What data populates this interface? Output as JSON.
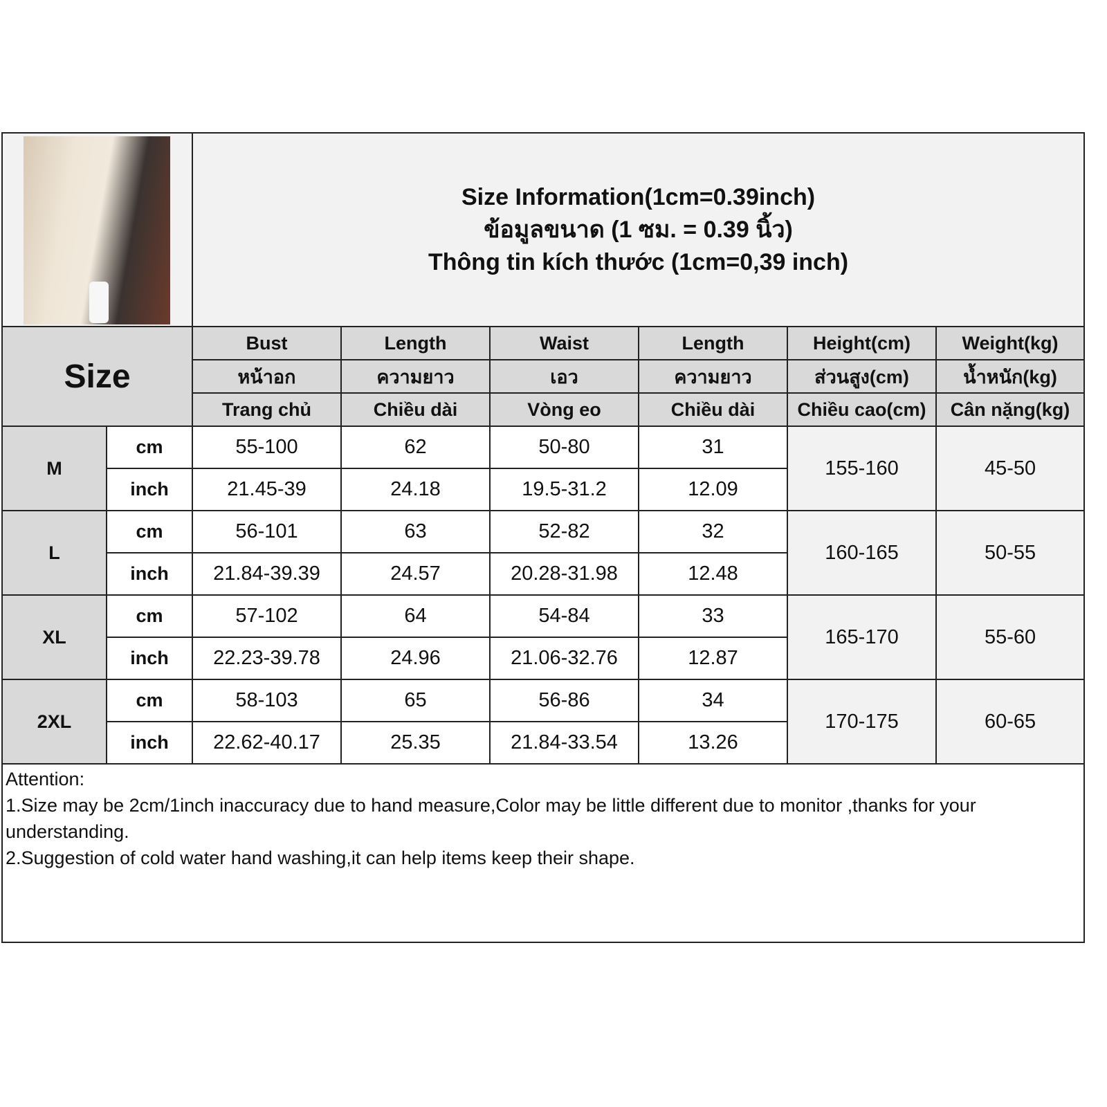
{
  "title": {
    "en": "Size Information(1cm=0.39inch)",
    "th": "ข้อมูลขนาด (1 ซม. = 0.39 นิ้ว)",
    "vi": "Thông tin kích thước (1cm=0,39 inch)"
  },
  "size_label": "Size",
  "columns": [
    {
      "en": "Bust",
      "th": "หน้าอก",
      "vi": "Trang chủ"
    },
    {
      "en": "Length",
      "th": "ความยาว",
      "vi": "Chiều dài"
    },
    {
      "en": "Waist",
      "th": "เอว",
      "vi": "Vòng eo"
    },
    {
      "en": "Length",
      "th": "ความยาว",
      "vi": "Chiều dài"
    },
    {
      "en": "Height(cm)",
      "th": "ส่วนสูง(cm)",
      "vi": "Chiều cao(cm)"
    },
    {
      "en": "Weight(kg)",
      "th": "น้ำหนัก(kg)",
      "vi": "Cân nặng(kg)"
    }
  ],
  "units": {
    "cm": "cm",
    "inch": "inch"
  },
  "rows": [
    {
      "size": "M",
      "cm": [
        "55-100",
        "62",
        "50-80",
        "31"
      ],
      "inch": [
        "21.45-39",
        "24.18",
        "19.5-31.2",
        "12.09"
      ],
      "height": "155-160",
      "weight": "45-50"
    },
    {
      "size": "L",
      "cm": [
        "56-101",
        "63",
        "52-82",
        "32"
      ],
      "inch": [
        "21.84-39.39",
        "24.57",
        "20.28-31.98",
        "12.48"
      ],
      "height": "160-165",
      "weight": "50-55"
    },
    {
      "size": "XL",
      "cm": [
        "57-102",
        "64",
        "54-84",
        "33"
      ],
      "inch": [
        "22.23-39.78",
        "24.96",
        "21.06-32.76",
        "12.87"
      ],
      "height": "165-170",
      "weight": "55-60"
    },
    {
      "size": "2XL",
      "cm": [
        "58-103",
        "65",
        "56-86",
        "34"
      ],
      "inch": [
        "22.62-40.17",
        "25.35",
        "21.84-33.54",
        "13.26"
      ],
      "height": "170-175",
      "weight": "60-65"
    }
  ],
  "notes": {
    "heading": "Attention:",
    "items": [
      "1.Size may be 2cm/1inch inaccuracy due to hand measure,Color may be little different due to monitor ,thanks for your understanding.",
      "2.Suggestion of cold water hand washing,it can help items keep their shape."
    ]
  }
}
